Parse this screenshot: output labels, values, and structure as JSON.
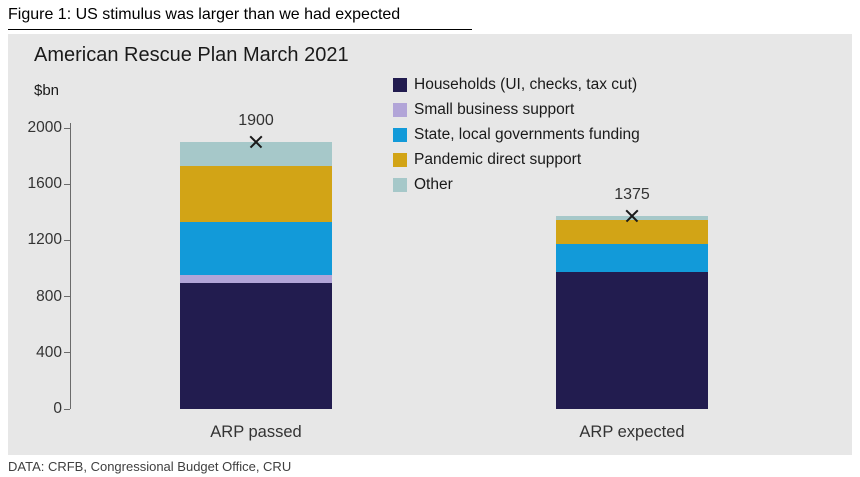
{
  "figure": {
    "title": "Figure 1: US stimulus was larger than we had expected"
  },
  "chart": {
    "title": "American Rescue Plan March 2021",
    "unit_label": "$bn"
  },
  "source": "DATA: CRFB, Congressional Budget Office, CRU",
  "colors": {
    "households": "#221c4f",
    "small_business": "#b2a5d8",
    "state_local": "#129ad9",
    "pandemic": "#d2a416",
    "other": "#a6c8c9",
    "panel_bg": "#e7e7e7",
    "marker": "#1a1a1a"
  },
  "chart_data": {
    "type": "bar",
    "stacked": true,
    "title": "American Rescue Plan March 2021",
    "xlabel": "",
    "ylabel": "$bn",
    "ylim": [
      0,
      2000
    ],
    "yticks": [
      0,
      400,
      800,
      1200,
      1600,
      2000
    ],
    "grid": false,
    "legend_position": "top-right",
    "categories": [
      "ARP passed",
      "ARP expected"
    ],
    "series": [
      {
        "name": "Households (UI, checks, tax cut)",
        "color_key": "households",
        "values": [
          900,
          975
        ]
      },
      {
        "name": "Small business support",
        "color_key": "small_business",
        "values": [
          55,
          0
        ]
      },
      {
        "name": "State, local governments funding",
        "color_key": "state_local",
        "values": [
          375,
          200
        ]
      },
      {
        "name": "Pandemic direct support",
        "color_key": "pandemic",
        "values": [
          400,
          170
        ]
      },
      {
        "name": "Other",
        "color_key": "other",
        "values": [
          170,
          30
        ]
      }
    ],
    "totals": [
      1900,
      1375
    ],
    "total_marker": "x"
  }
}
